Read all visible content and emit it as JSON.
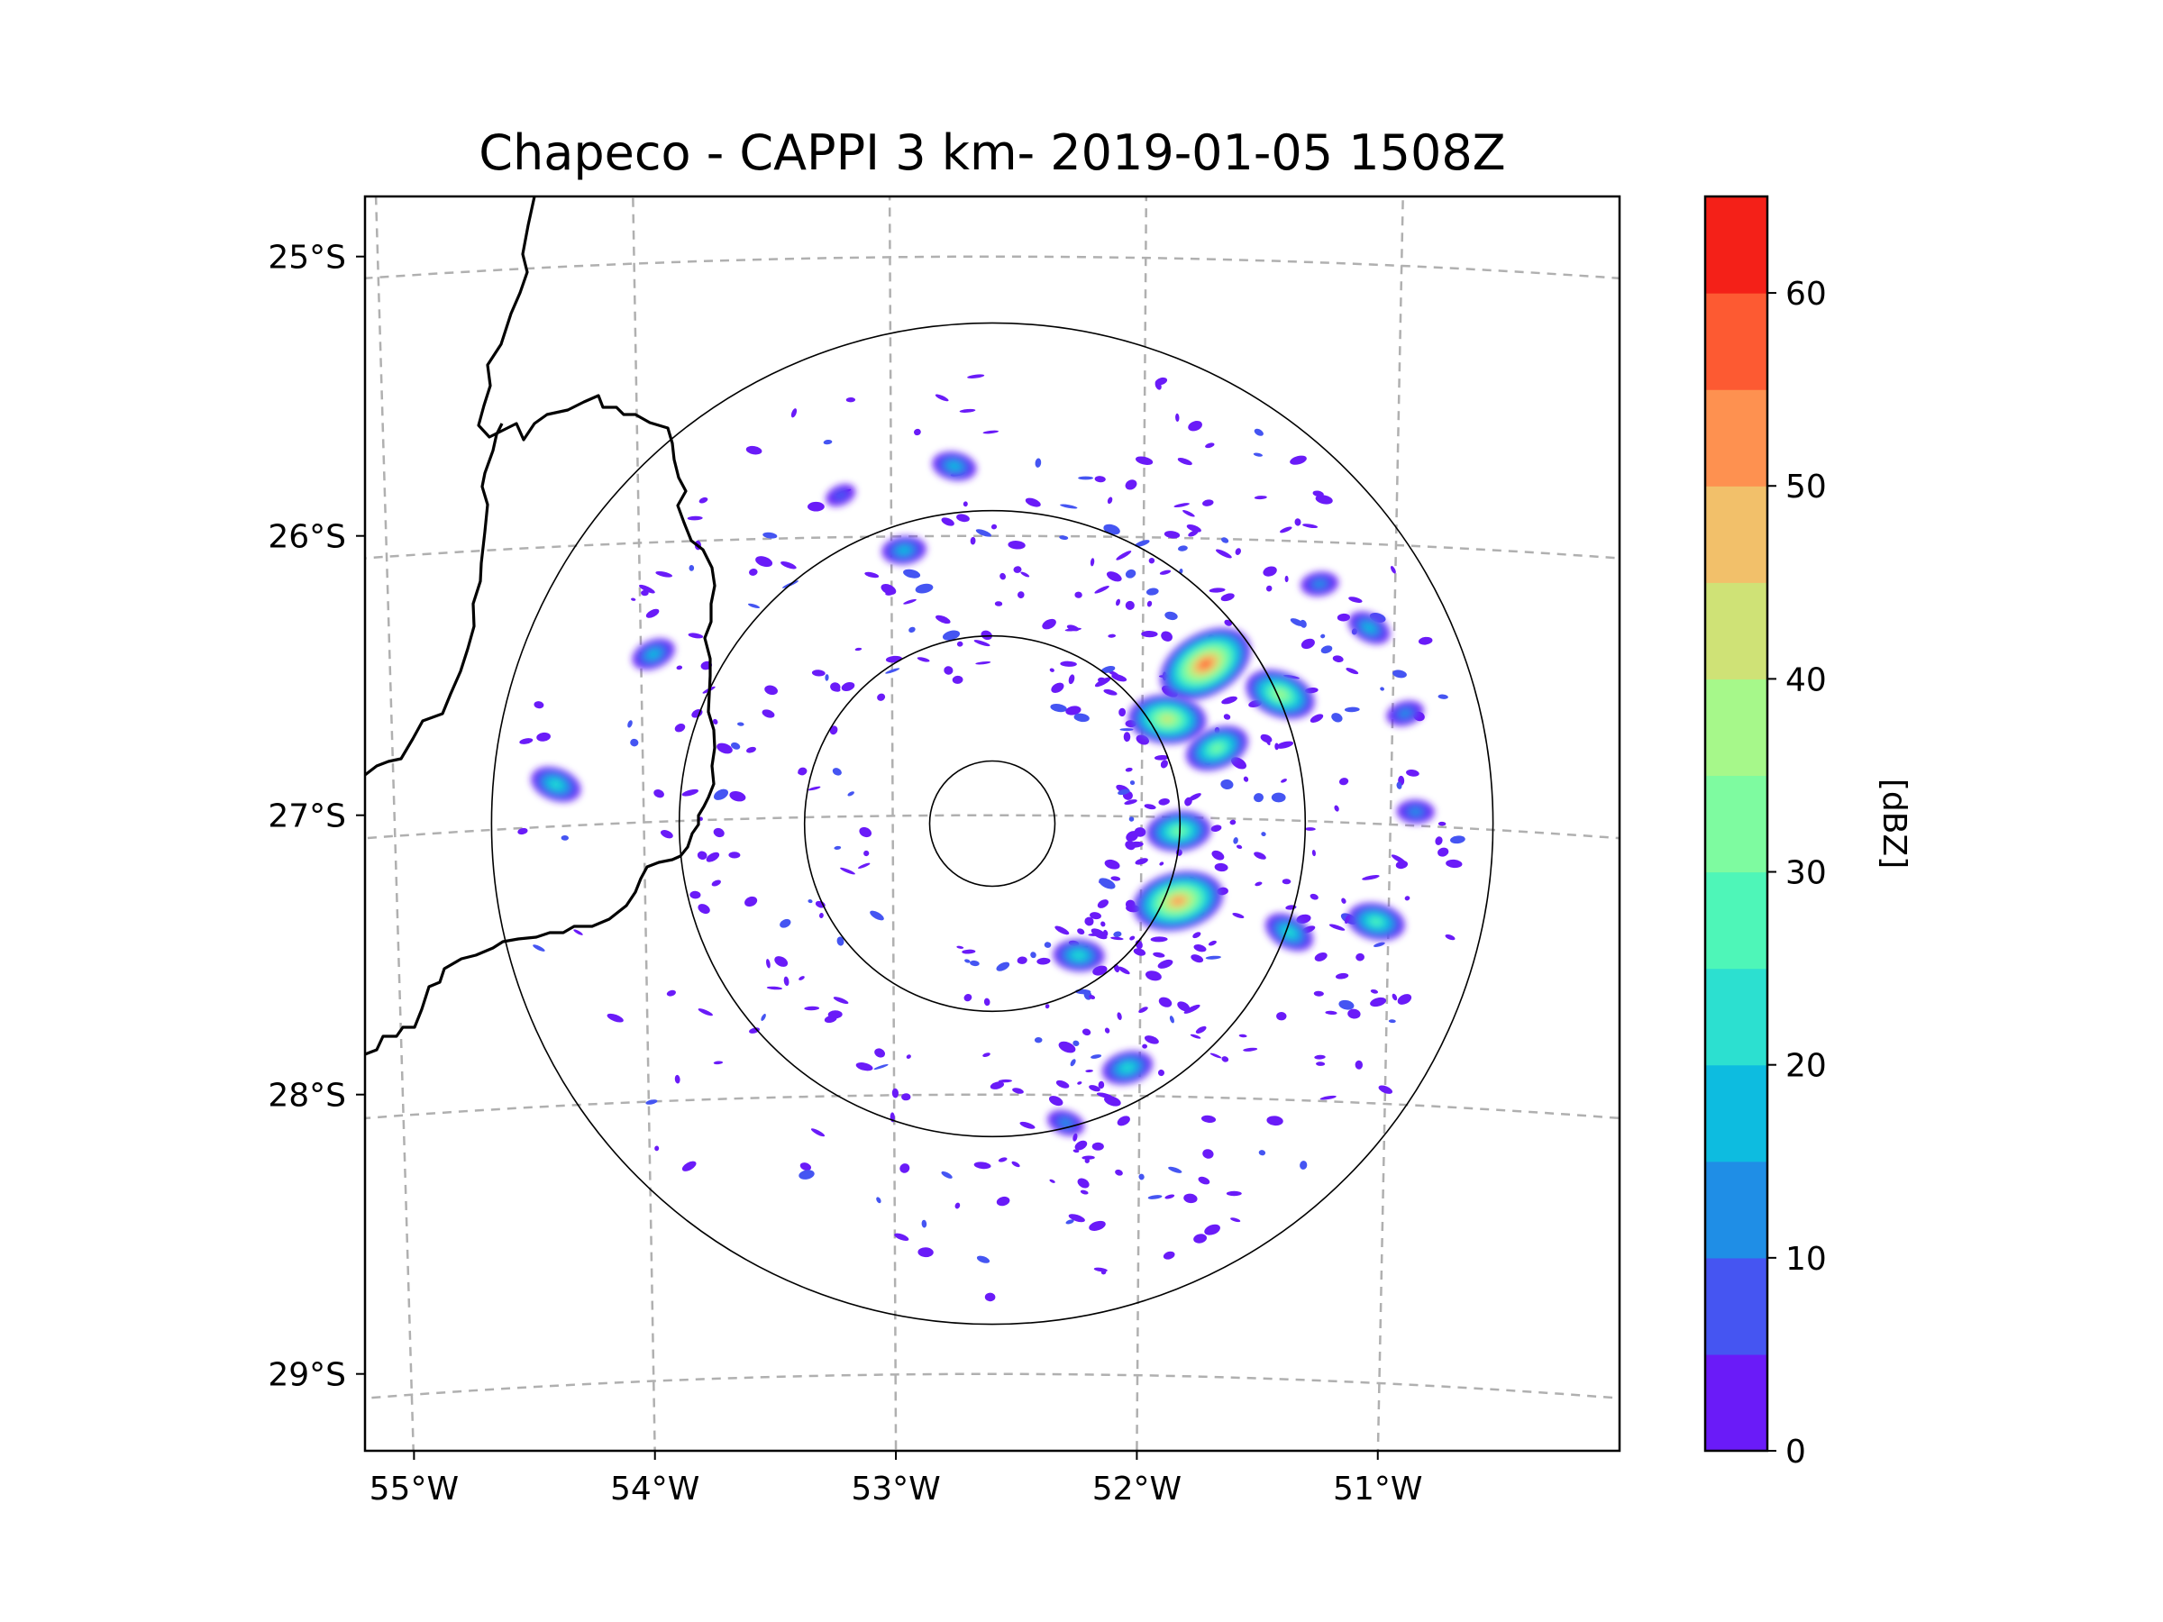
{
  "chart_data": {
    "type": "heatmap",
    "subtype": "radar-cappi-map",
    "title": "Chapeco - CAPPI 3 km- 2019-01-05 1508Z",
    "radar_site": "Chapeco",
    "product": "CAPPI 3 km",
    "datetime": "2019-01-05 1508Z",
    "radar_center": {
      "lon": -52.6,
      "lat": -27.03
    },
    "xlabel": "",
    "ylabel": "",
    "xlim": [
      -55.18,
      -50.08
    ],
    "ylim": [
      -29.27,
      -24.78
    ],
    "x_ticks": [
      {
        "value": -55,
        "label": "55°W"
      },
      {
        "value": -54,
        "label": "54°W"
      },
      {
        "value": -53,
        "label": "53°W"
      },
      {
        "value": -52,
        "label": "52°W"
      },
      {
        "value": -51,
        "label": "51°W"
      }
    ],
    "y_ticks": [
      {
        "value": -25,
        "label": "25°S"
      },
      {
        "value": -26,
        "label": "26°S"
      },
      {
        "value": -27,
        "label": "27°S"
      },
      {
        "value": -28,
        "label": "28°S"
      },
      {
        "value": -29,
        "label": "29°S"
      }
    ],
    "range_rings_km": [
      50,
      150,
      250,
      400
    ],
    "gridlines": true,
    "colorbar": {
      "label": "[dBZ]",
      "min": 0,
      "max": 65,
      "levels": [
        0,
        5,
        10,
        15,
        20,
        25,
        30,
        35,
        40,
        45,
        50,
        55,
        60,
        65
      ],
      "tick_values": [
        0,
        10,
        20,
        30,
        40,
        50,
        60
      ],
      "tick_labels": [
        "0",
        "10",
        "20",
        "30",
        "40",
        "50",
        "60"
      ],
      "colors": [
        "#6a1bf8",
        "#4555f2",
        "#1f8ee6",
        "#0dbce0",
        "#2ce0d0",
        "#4ef6b8",
        "#7efba0",
        "#a6f88a",
        "#cfe276",
        "#f2c06a",
        "#fe9150",
        "#fd5a32",
        "#f42018"
      ]
    },
    "echo_cells": [
      {
        "lon": -51.75,
        "lat": -26.45,
        "peak_dbz": 55
      },
      {
        "lon": -51.85,
        "lat": -27.3,
        "peak_dbz": 50
      },
      {
        "lon": -51.9,
        "lat": -26.65,
        "peak_dbz": 40
      },
      {
        "lon": -51.45,
        "lat": -26.55,
        "peak_dbz": 35
      },
      {
        "lon": -51.7,
        "lat": -26.75,
        "peak_dbz": 30
      },
      {
        "lon": -51.85,
        "lat": -27.05,
        "peak_dbz": 30
      },
      {
        "lon": -51.05,
        "lat": -27.35,
        "peak_dbz": 25
      },
      {
        "lon": -51.4,
        "lat": -27.4,
        "peak_dbz": 20
      },
      {
        "lon": -52.05,
        "lat": -27.9,
        "peak_dbz": 20
      },
      {
        "lon": -52.25,
        "lat": -27.5,
        "peak_dbz": 20
      },
      {
        "lon": -54.35,
        "lat": -26.85,
        "peak_dbz": 20
      },
      {
        "lon": -53.95,
        "lat": -26.4,
        "peak_dbz": 15
      },
      {
        "lon": -52.95,
        "lat": -26.05,
        "peak_dbz": 15
      },
      {
        "lon": -52.75,
        "lat": -25.75,
        "peak_dbz": 15
      },
      {
        "lon": -51.1,
        "lat": -26.3,
        "peak_dbz": 15
      },
      {
        "lon": -50.95,
        "lat": -26.6,
        "peak_dbz": 10
      },
      {
        "lon": -50.9,
        "lat": -26.95,
        "peak_dbz": 10
      },
      {
        "lon": -52.3,
        "lat": -28.1,
        "peak_dbz": 10
      },
      {
        "lon": -53.2,
        "lat": -25.85,
        "peak_dbz": 5
      },
      {
        "lon": -51.3,
        "lat": -26.15,
        "peak_dbz": 10
      }
    ]
  }
}
